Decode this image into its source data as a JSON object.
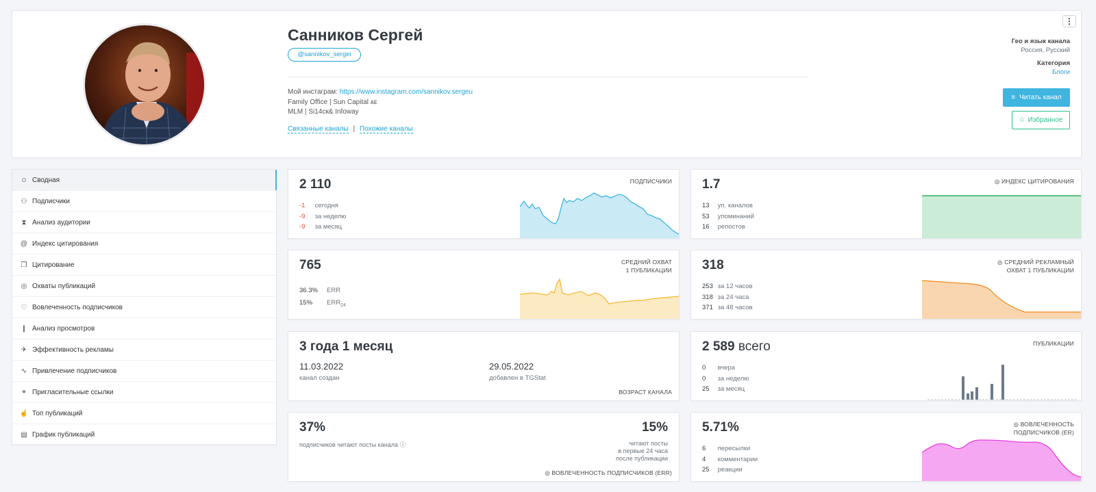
{
  "header": {
    "title": "Санников Сергей",
    "username": "@sannikov_sergei",
    "desc_lines": [
      {
        "prefix": "Мой инстаграм: ",
        "link": "https://www.instagram.com/sannikov.sergeu"
      },
      {
        "text": "Family Office | Sun Capital ᴀᴇ"
      },
      {
        "text": "MLM | Si14ск& Infoway"
      }
    ],
    "related_link": "Связанные каналы",
    "separator": "|",
    "similar_link": "Похожие каналы",
    "geo_label": "Гео и язык канала",
    "geo_value": "Россия, Русский",
    "category_label": "Категория",
    "category_value": "Блоги",
    "read_button": "Читать канал",
    "fav_button": "Избранное",
    "menu_glyph": "⋮"
  },
  "sidebar": {
    "items": [
      {
        "label": "Сводная",
        "icon": "☺",
        "icon_name": "face-icon"
      },
      {
        "label": "Подписчики",
        "icon": "⚇",
        "icon_name": "users-icon"
      },
      {
        "label": "Анализ аудитории",
        "icon": "⧗",
        "icon_name": "hourglass-icon"
      },
      {
        "label": "Индекс цитирования",
        "icon": "@",
        "icon_name": "at-icon"
      },
      {
        "label": "Цитирование",
        "icon": "❒",
        "icon_name": "quote-icon"
      },
      {
        "label": "Охваты публикаций",
        "icon": "◎",
        "icon_name": "eye-icon"
      },
      {
        "label": "Вовлеченность подписчиков",
        "icon": "♡",
        "icon_name": "heart-icon"
      },
      {
        "label": "Анализ просмотров",
        "icon": "❙",
        "icon_name": "bar-chart-icon"
      },
      {
        "label": "Эффективность рекламы",
        "icon": "✈",
        "icon_name": "rocket-icon"
      },
      {
        "label": "Привлечение подписчиков",
        "icon": "∿",
        "icon_name": "trend-icon"
      },
      {
        "label": "Пригласительные ссылки",
        "icon": "⚭",
        "icon_name": "link-icon"
      },
      {
        "label": "Топ публикаций",
        "icon": "☝",
        "icon_name": "thumbs-up-icon"
      },
      {
        "label": "График публикаций",
        "icon": "▤",
        "icon_name": "calendar-icon"
      }
    ],
    "active_index": 0
  },
  "cards": {
    "subs": {
      "value": "2 110",
      "label": "ПОДПИСЧИКИ",
      "rows": [
        [
          "-1",
          "сегодня"
        ],
        [
          "-9",
          "за неделю"
        ],
        [
          "-9",
          "за месяц"
        ]
      ],
      "color": "#3fb5e0"
    },
    "cite": {
      "value": "1.7",
      "label": "ИНДЕКС ЦИТИРОВАНИЯ",
      "label_icon": "◎",
      "rows": [
        [
          "13",
          "уп. каналов"
        ],
        [
          "53",
          "упоминаний"
        ],
        [
          "16",
          "репостов"
        ]
      ],
      "color": "#2fb35f"
    },
    "reach": {
      "value": "765",
      "label_line1": "СРЕДНИЙ ОХВАТ",
      "label_line2": "1 ПУБЛИКАЦИИ",
      "rows": [
        [
          "36.3%",
          "ERR",
          ""
        ],
        [
          "15%",
          "ERR",
          "24"
        ]
      ],
      "color": "#f5b935"
    },
    "adreach": {
      "value": "318",
      "label_icon": "◎",
      "label_line1": "СРЕДНИЙ РЕКЛАМНЫЙ",
      "label_line2": "ОХВАТ 1 ПУБЛИКАЦИИ",
      "rows": [
        [
          "253",
          "за 12 часов"
        ],
        [
          "318",
          "за 24 часа"
        ],
        [
          "371",
          "за 48 часов"
        ]
      ],
      "color": "#f08a1e"
    },
    "age": {
      "value": "3 года 1 месяц",
      "created_date": "11.03.2022",
      "created_label": "канал создан",
      "added_date": "29.05.2022",
      "added_label": "добавлен в TGStat",
      "label": "ВОЗРАСТ КАНАЛА"
    },
    "posts": {
      "value": "2 589",
      "value_suffix": "всего",
      "label": "ПУБЛИКАЦИИ",
      "rows": [
        [
          "0",
          "вчера"
        ],
        [
          "0",
          "за неделю"
        ],
        [
          "25",
          "за месяц"
        ]
      ],
      "color": "#6c7a8a"
    },
    "err": {
      "value_left": "37%",
      "caption_left": "подписчиков читают посты канала",
      "caption_icon": "ⓘ",
      "value_right": "15%",
      "caption_right_1": "читают посты",
      "caption_right_2": "в первые 24 часа",
      "caption_right_3": "после публикации",
      "label_icon": "◎",
      "label": "ВОВЛЕЧЕННОСТЬ ПОДПИСЧИКОВ (ERR)"
    },
    "er": {
      "value": "5.71%",
      "label_icon": "◎",
      "label_line1": "ВОВЛЕЧЕННОСТЬ",
      "label_line2": "ПОДПИСЧИКОВ (ER)",
      "rows": [
        [
          "6",
          "пересылки"
        ],
        [
          "4",
          "комментарии"
        ],
        [
          "25",
          "реакции"
        ]
      ],
      "color": "#e83fe0"
    }
  }
}
